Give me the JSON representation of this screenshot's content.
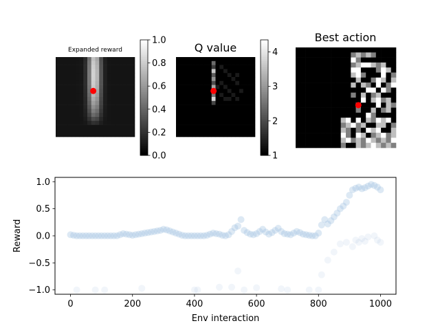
{
  "chart_data": [
    {
      "type": "heatmap",
      "title": "Expanded reward",
      "grid_size": 20,
      "colormap": "gray",
      "colorbar": {
        "min": 0.0,
        "max": 1.0,
        "ticks": [
          "0.0",
          "0.2",
          "0.4",
          "0.6",
          "0.8",
          "1.0"
        ],
        "tick_values": [
          0.0,
          0.2,
          0.4,
          0.6,
          0.8,
          1.0
        ]
      },
      "marker": {
        "col": 9,
        "row": 8,
        "color": "#ff0000"
      },
      "field": {
        "center_col": 9.3,
        "center_row": 5.0,
        "sigma_col": 1.6,
        "top_row": 0.0,
        "bottom_row": 14.0,
        "peak": 0.85,
        "background": 0.08
      }
    },
    {
      "type": "heatmap",
      "title": "Q value",
      "grid_size": 20,
      "colormap": "gray",
      "colorbar": {
        "min": 1.0,
        "max": 4.35,
        "ticks": [
          "1",
          "2",
          "3",
          "4"
        ],
        "tick_values": [
          1,
          2,
          3,
          4
        ]
      },
      "marker": {
        "col": 9,
        "row": 8,
        "color": "#ff0000"
      },
      "column_values": {
        "col": 9,
        "rows": [
          [
            1,
            2.4
          ],
          [
            2,
            1.8
          ],
          [
            3,
            3.6
          ],
          [
            4,
            2.2
          ],
          [
            5,
            2.9
          ],
          [
            6,
            2.0
          ],
          [
            7,
            3.2
          ],
          [
            8,
            4.3
          ],
          [
            9,
            2.6
          ],
          [
            10,
            3.8
          ],
          [
            11,
            1.9
          ]
        ]
      },
      "faint_cells": [
        [
          11,
          2
        ],
        [
          12,
          3
        ],
        [
          13,
          4
        ],
        [
          14,
          5
        ],
        [
          15,
          6
        ],
        [
          11,
          6
        ],
        [
          12,
          7
        ],
        [
          13,
          8
        ],
        [
          14,
          9
        ],
        [
          15,
          10
        ],
        [
          16,
          8
        ],
        [
          13,
          10
        ],
        [
          12,
          10
        ],
        [
          15,
          4
        ],
        [
          10,
          7
        ],
        [
          11,
          9
        ]
      ]
    },
    {
      "type": "heatmap",
      "title": "Best action",
      "grid_size": 20,
      "colormap": "gray",
      "marker": {
        "col": 12,
        "row": 11,
        "color": "#ff0000"
      },
      "cells": [
        [
          11,
          1,
          0.5
        ],
        [
          12,
          1,
          0.75
        ],
        [
          13,
          1,
          0.5
        ],
        [
          14,
          1,
          0.75
        ],
        [
          15,
          1,
          0.5
        ],
        [
          11,
          2,
          1.0
        ],
        [
          12,
          2,
          0.5
        ],
        [
          11,
          3,
          0.5
        ],
        [
          12,
          3,
          0.75
        ],
        [
          13,
          3,
          1.0
        ],
        [
          14,
          3,
          1.0
        ],
        [
          15,
          3,
          0.75
        ],
        [
          16,
          3,
          0.5
        ],
        [
          17,
          3,
          0.75
        ],
        [
          11,
          4,
          1.0
        ],
        [
          12,
          4,
          1.0
        ],
        [
          16,
          4,
          0.5
        ],
        [
          17,
          4,
          1.0
        ],
        [
          18,
          4,
          0.75
        ],
        [
          11,
          5,
          0.75
        ],
        [
          12,
          5,
          1.0
        ],
        [
          13,
          5,
          0.5
        ],
        [
          17,
          5,
          1.0
        ],
        [
          19,
          5,
          0.5
        ],
        [
          12,
          6,
          0.75
        ],
        [
          15,
          6,
          0.5
        ],
        [
          16,
          6,
          1.0
        ],
        [
          17,
          6,
          0.75
        ],
        [
          19,
          6,
          0.75
        ],
        [
          11,
          7,
          0.75
        ],
        [
          13,
          7,
          0.75
        ],
        [
          14,
          7,
          0.5
        ],
        [
          16,
          7,
          1.0
        ],
        [
          18,
          7,
          0.5
        ],
        [
          19,
          7,
          1.0
        ],
        [
          14,
          8,
          1.0
        ],
        [
          15,
          8,
          1.0
        ],
        [
          17,
          8,
          1.0
        ],
        [
          18,
          8,
          0.5
        ],
        [
          11,
          9,
          0.5
        ],
        [
          13,
          9,
          0.75
        ],
        [
          15,
          9,
          0.5
        ],
        [
          16,
          9,
          0.75
        ],
        [
          13,
          10,
          1.0
        ],
        [
          15,
          10,
          0.75
        ],
        [
          16,
          10,
          1.0
        ],
        [
          17,
          10,
          0.5
        ],
        [
          18,
          10,
          0.75
        ],
        [
          12,
          11,
          0.75
        ],
        [
          16,
          11,
          1.0
        ],
        [
          18,
          11,
          0.75
        ],
        [
          19,
          11,
          0.5
        ],
        [
          12,
          12,
          0.5
        ],
        [
          15,
          12,
          0.75
        ],
        [
          17,
          12,
          0.5
        ],
        [
          18,
          12,
          0.75
        ],
        [
          14,
          13,
          1.0
        ],
        [
          15,
          13,
          0.5
        ],
        [
          9,
          14,
          0.75
        ],
        [
          10,
          14,
          1.0
        ],
        [
          12,
          14,
          1.0
        ],
        [
          14,
          14,
          0.75
        ],
        [
          15,
          14,
          0.5
        ],
        [
          16,
          14,
          1.0
        ],
        [
          17,
          14,
          0.75
        ],
        [
          18,
          14,
          1.0
        ],
        [
          9,
          15,
          0.5
        ],
        [
          10,
          15,
          0.75
        ],
        [
          11,
          15,
          1.0
        ],
        [
          12,
          15,
          0.5
        ],
        [
          13,
          15,
          0.75
        ],
        [
          16,
          15,
          0.75
        ],
        [
          17,
          15,
          0.75
        ],
        [
          19,
          15,
          0.5
        ],
        [
          9,
          16,
          0.75
        ],
        [
          10,
          16,
          0.5
        ],
        [
          12,
          16,
          0.5
        ],
        [
          14,
          16,
          1.0
        ],
        [
          15,
          16,
          0.75
        ],
        [
          16,
          16,
          1.0
        ],
        [
          19,
          16,
          0.75
        ],
        [
          9,
          17,
          1.0
        ],
        [
          10,
          17,
          0.5
        ],
        [
          12,
          17,
          1.0
        ],
        [
          13,
          17,
          0.75
        ],
        [
          15,
          17,
          0.5
        ],
        [
          16,
          17,
          0.75
        ],
        [
          17,
          17,
          1.0
        ],
        [
          18,
          17,
          0.5
        ],
        [
          19,
          17,
          0.75
        ],
        [
          9,
          18,
          0.75
        ],
        [
          10,
          18,
          1.0
        ],
        [
          11,
          18,
          0.5
        ],
        [
          12,
          18,
          0.75
        ],
        [
          13,
          18,
          0.5
        ],
        [
          14,
          18,
          1.0
        ],
        [
          15,
          18,
          0.75
        ],
        [
          16,
          18,
          0.5
        ],
        [
          17,
          18,
          0.75
        ],
        [
          18,
          18,
          0.5
        ],
        [
          19,
          18,
          1.0
        ],
        [
          9,
          19,
          0.5
        ],
        [
          12,
          19,
          0.75
        ],
        [
          13,
          19,
          0.5
        ],
        [
          14,
          19,
          0.75
        ],
        [
          15,
          19,
          1.0
        ],
        [
          16,
          19,
          0.75
        ],
        [
          17,
          19,
          0.5
        ],
        [
          18,
          19,
          0.75
        ],
        [
          19,
          19,
          0.5
        ]
      ]
    },
    {
      "type": "scatter",
      "title": "",
      "xlabel": "Env interaction",
      "ylabel": "Reward",
      "xlim": [
        -50,
        1050
      ],
      "ylim": [
        -1.08,
        1.08
      ],
      "x_ticks": [
        0,
        200,
        400,
        600,
        800,
        1000
      ],
      "y_ticks": [
        -1.0,
        -0.5,
        0.0,
        0.5,
        1.0
      ],
      "x_tick_labels": [
        "0",
        "200",
        "400",
        "600",
        "800",
        "1000"
      ],
      "y_tick_labels": [
        "−1.0",
        "−0.5",
        "0.0",
        "0.5",
        "1.0"
      ],
      "marker_color": "#9ebfdf",
      "series": [
        {
          "x": [
            0,
            10,
            20,
            30,
            40,
            50,
            60,
            70,
            80,
            90,
            100,
            110,
            120,
            130,
            140,
            150,
            160,
            170,
            180,
            190,
            200,
            210,
            220,
            230,
            240,
            250,
            260,
            270,
            280,
            290,
            300,
            310,
            320,
            330,
            340,
            350,
            360,
            370,
            380,
            390,
            400,
            410,
            420,
            430,
            440,
            450,
            460,
            470,
            480,
            490,
            500,
            510,
            520,
            530,
            540,
            550,
            560,
            570,
            580,
            590,
            600,
            610,
            620,
            630,
            640,
            650,
            660,
            670,
            680,
            690,
            700,
            710,
            720,
            730,
            740,
            750,
            760,
            770,
            780,
            790,
            800,
            810,
            820,
            830,
            840,
            850,
            860,
            870,
            880,
            890,
            900,
            910,
            920,
            930,
            940,
            950,
            960,
            970,
            980,
            990,
            1000
          ],
          "y": [
            0.02,
            0.01,
            0.0,
            0.0,
            0.0,
            0.0,
            0.0,
            0.0,
            0.0,
            0.0,
            0.0,
            0.0,
            0.0,
            0.0,
            0.0,
            0.0,
            0.02,
            0.04,
            0.03,
            0.02,
            0.01,
            0.02,
            0.03,
            0.04,
            0.05,
            0.06,
            0.07,
            0.08,
            0.09,
            0.1,
            0.12,
            0.11,
            0.09,
            0.07,
            0.05,
            0.03,
            0.01,
            0.0,
            0.0,
            0.0,
            0.0,
            0.0,
            0.0,
            0.0,
            0.01,
            0.03,
            0.05,
            0.04,
            0.03,
            0.01,
            0.0,
            0.02,
            0.08,
            0.15,
            0.18,
            0.3,
            0.1,
            0.06,
            0.03,
            0.02,
            0.04,
            0.08,
            0.12,
            0.07,
            0.03,
            0.06,
            0.1,
            0.14,
            0.08,
            0.04,
            0.03,
            0.02,
            0.05,
            0.08,
            0.06,
            0.03,
            0.02,
            0.01,
            0.0,
            0.0,
            0.05,
            0.2,
            0.3,
            0.22,
            0.28,
            0.35,
            0.42,
            0.5,
            0.55,
            0.62,
            0.75,
            0.85,
            0.88,
            0.9,
            0.87,
            0.89,
            0.92,
            0.95,
            0.93,
            0.9,
            0.85
          ]
        },
        {
          "x": [
            20,
            80,
            110,
            230,
            400,
            410,
            480,
            520,
            540,
            560,
            600,
            680,
            700,
            770,
            800,
            810,
            830,
            850,
            870,
            890,
            910,
            920,
            930,
            940,
            950,
            960,
            980,
            990,
            1000
          ],
          "y": [
            -1.0,
            -1.0,
            -1.0,
            -0.97,
            -1.0,
            -1.0,
            -0.95,
            -0.95,
            -0.65,
            -1.0,
            -0.96,
            -0.98,
            -1.0,
            -1.0,
            -1.0,
            -0.72,
            -0.45,
            -0.3,
            -0.15,
            -0.12,
            -0.2,
            -0.08,
            -0.12,
            -0.05,
            -0.1,
            -0.02,
            0.0,
            -0.08,
            -0.12
          ]
        }
      ]
    }
  ]
}
